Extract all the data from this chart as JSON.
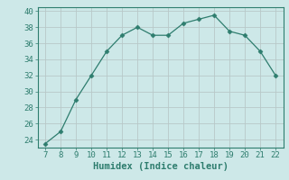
{
  "x": [
    7,
    8,
    9,
    10,
    11,
    12,
    13,
    14,
    15,
    16,
    17,
    18,
    19,
    20,
    21,
    22
  ],
  "y": [
    23.5,
    25.0,
    29.0,
    32.0,
    35.0,
    37.0,
    38.0,
    37.0,
    37.0,
    38.5,
    39.0,
    39.5,
    37.5,
    37.0,
    35.0,
    32.0
  ],
  "line_color": "#2e7d6e",
  "marker": "D",
  "marker_size": 2.5,
  "background_color": "#cde8e8",
  "grid_color": "#b8c8c8",
  "xlabel": "Humidex (Indice chaleur)",
  "xlim": [
    6.5,
    22.5
  ],
  "ylim": [
    23,
    40.5
  ],
  "xticks": [
    7,
    8,
    9,
    10,
    11,
    12,
    13,
    14,
    15,
    16,
    17,
    18,
    19,
    20,
    21,
    22
  ],
  "yticks": [
    24,
    26,
    28,
    30,
    32,
    34,
    36,
    38,
    40
  ],
  "tick_fontsize": 6.5,
  "label_fontsize": 7.5
}
